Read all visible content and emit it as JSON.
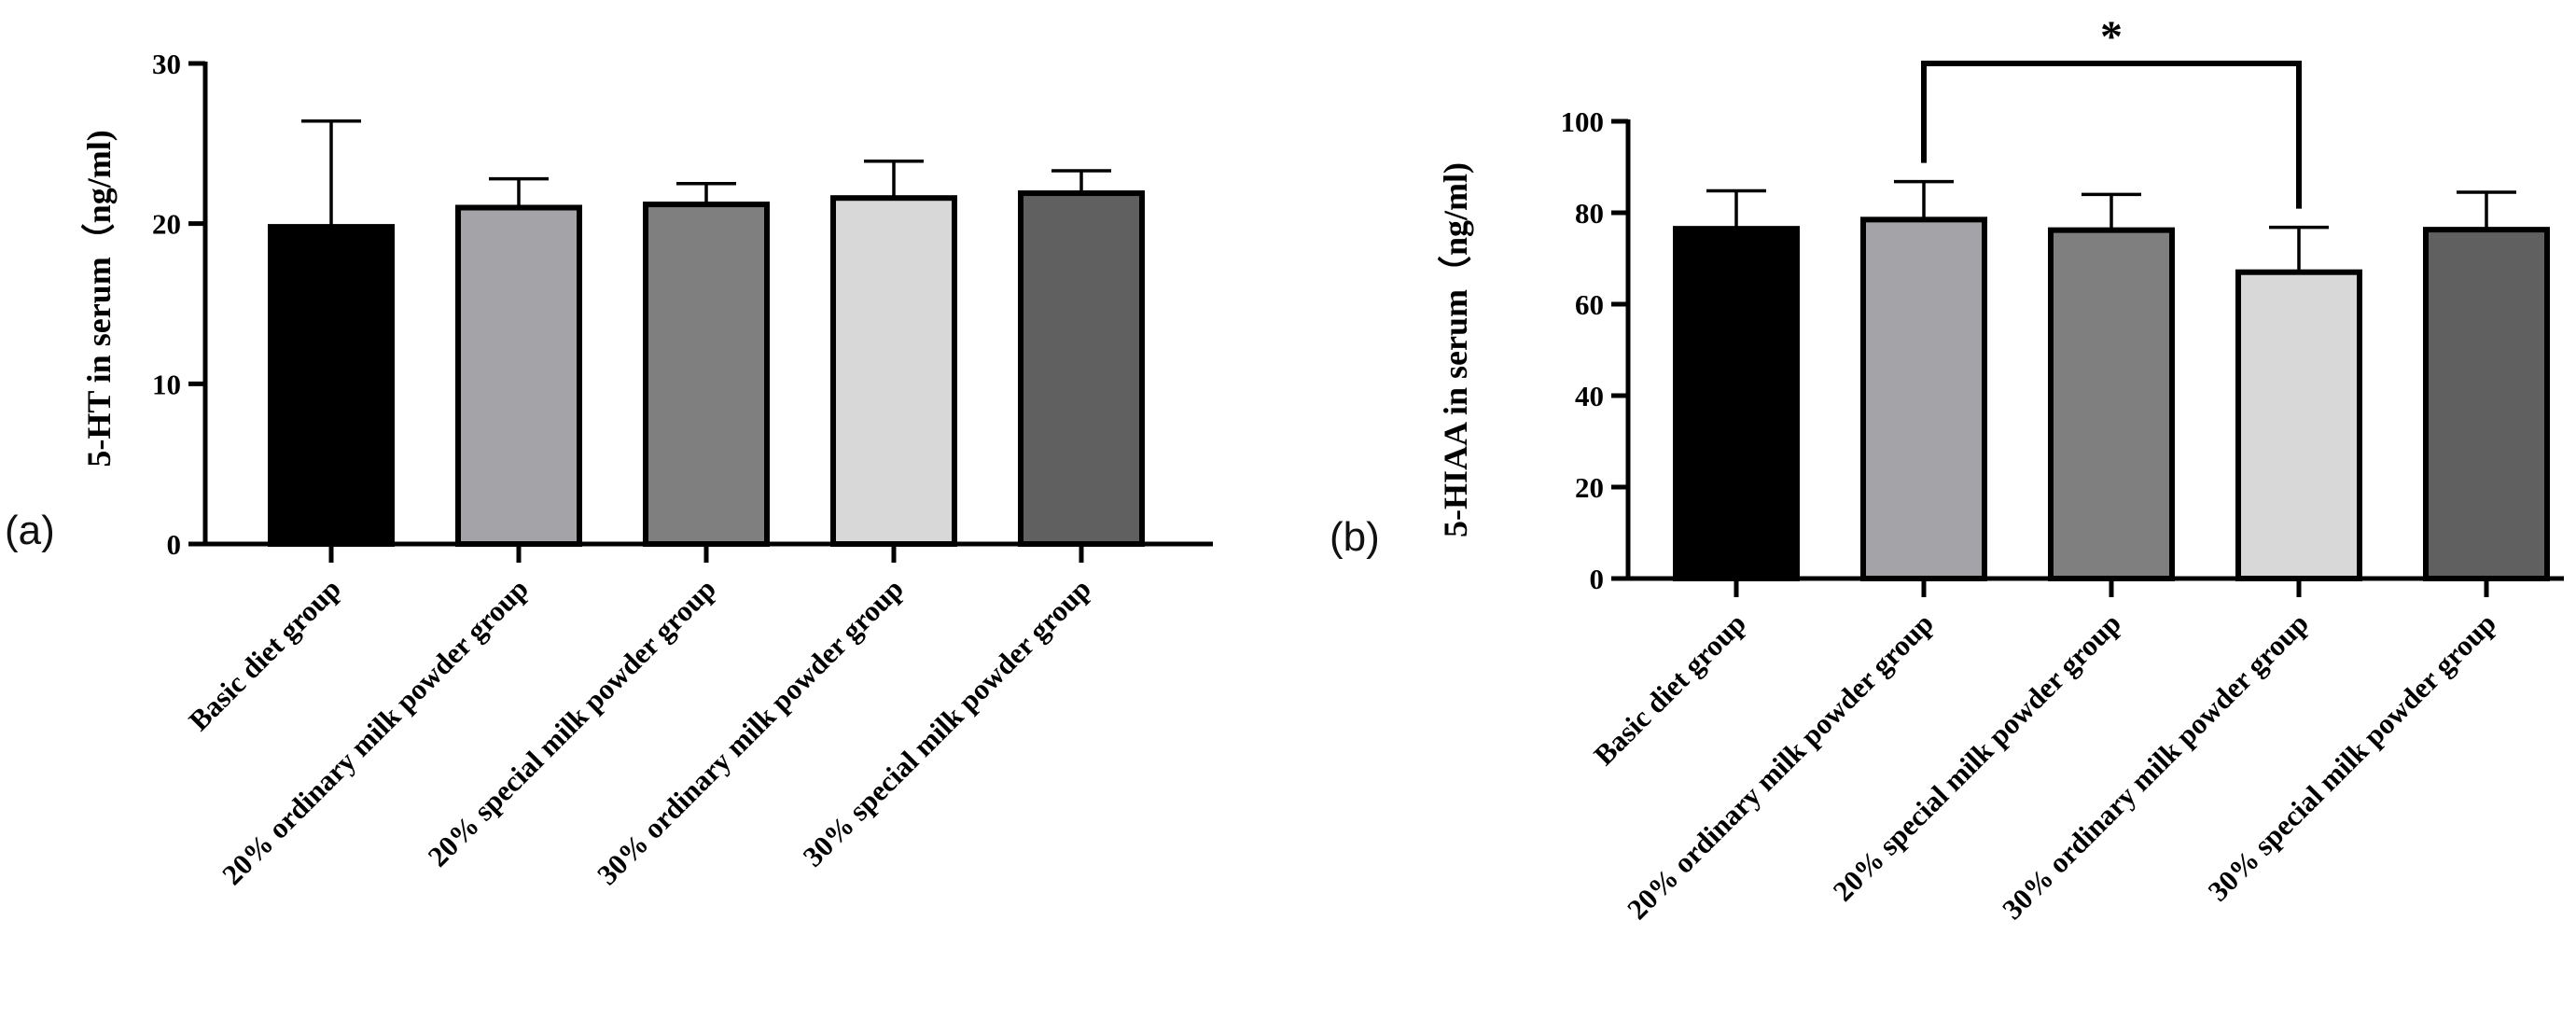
{
  "chart_data": [
    {
      "panel": "(a)",
      "type": "bar",
      "categories": [
        "Basic diet group",
        "20% ordinary milk powder group",
        "20% special milk powder group",
        "30% ordinary milk powder group",
        "30% special milk powder group"
      ],
      "values": [
        19.8,
        21.0,
        21.2,
        21.6,
        21.9
      ],
      "errors": [
        6.6,
        1.8,
        1.3,
        2.3,
        1.4
      ],
      "colors": [
        "#000000",
        "#a4a4a8",
        "#7f7f7f",
        "#d8d8d8",
        "#606060"
      ],
      "ylabel": "5-HT in serum（ng/ml)",
      "xlabel": "",
      "ylim": [
        0,
        30
      ],
      "yticks": [
        0,
        10,
        20,
        30
      ],
      "significance": []
    },
    {
      "panel": "(b)",
      "type": "bar",
      "categories": [
        "Basic diet group",
        "20% ordinary milk powder group",
        "20% special milk powder group",
        "30% ordinary milk powder group",
        "30% special milk powder group"
      ],
      "values": [
        76.5,
        78.5,
        76.2,
        67.0,
        76.3
      ],
      "errors": [
        8.3,
        8.3,
        7.8,
        9.8,
        8.2
      ],
      "colors": [
        "#000000",
        "#a4a4a8",
        "#7f7f7f",
        "#d8d8d8",
        "#606060"
      ],
      "ylabel": "5-HIAA in serum（ng/ml)",
      "xlabel": "",
      "ylim": [
        0,
        100
      ],
      "yticks": [
        0,
        20,
        40,
        60,
        80,
        100
      ],
      "significance": [
        {
          "from": 1,
          "to": 3,
          "label": "*"
        }
      ]
    }
  ]
}
